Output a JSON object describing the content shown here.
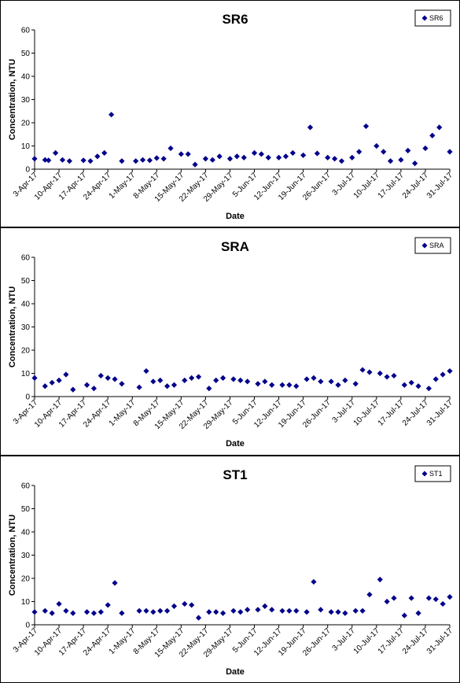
{
  "chart_data": [
    {
      "type": "scatter",
      "title": "SR6",
      "xlabel": "Date",
      "ylabel": "Concentration, NTU",
      "ylim": [
        0,
        60
      ],
      "yticks": [
        0,
        10,
        20,
        30,
        40,
        50,
        60
      ],
      "xlim": [
        "2017-04-03",
        "2017-07-31"
      ],
      "xticks": [
        "3-Apr-17",
        "10-Apr-17",
        "17-Apr-17",
        "24-Apr-17",
        "1-May-17",
        "8-May-17",
        "15-May-17",
        "22-May-17",
        "29-May-17",
        "5-Jun-17",
        "12-Jun-17",
        "19-Jun-17",
        "26-Jun-17",
        "3-Jul-17",
        "10-Jul-17",
        "17-Jul-17",
        "24-Jul-17",
        "31-Jul-17"
      ],
      "grid": false,
      "legend_position": "top-right",
      "marker": "diamond",
      "color": "#00008B",
      "series": [
        {
          "name": "SR6",
          "points": [
            [
              "2017-04-03",
              4.5
            ],
            [
              "2017-04-06",
              4.0
            ],
            [
              "2017-04-07",
              3.8
            ],
            [
              "2017-04-09",
              7.0
            ],
            [
              "2017-04-11",
              4.0
            ],
            [
              "2017-04-13",
              3.5
            ],
            [
              "2017-04-17",
              3.8
            ],
            [
              "2017-04-19",
              3.5
            ],
            [
              "2017-04-21",
              5.5
            ],
            [
              "2017-04-23",
              7.0
            ],
            [
              "2017-04-25",
              23.5
            ],
            [
              "2017-04-28",
              3.5
            ],
            [
              "2017-05-02",
              3.5
            ],
            [
              "2017-05-04",
              4.0
            ],
            [
              "2017-05-06",
              3.8
            ],
            [
              "2017-05-08",
              4.8
            ],
            [
              "2017-05-10",
              4.5
            ],
            [
              "2017-05-12",
              9.0
            ],
            [
              "2017-05-15",
              6.5
            ],
            [
              "2017-05-17",
              6.5
            ],
            [
              "2017-05-19",
              2.0
            ],
            [
              "2017-05-22",
              4.5
            ],
            [
              "2017-05-24",
              4.0
            ],
            [
              "2017-05-26",
              5.5
            ],
            [
              "2017-05-29",
              4.5
            ],
            [
              "2017-05-31",
              5.5
            ],
            [
              "2017-06-02",
              5.0
            ],
            [
              "2017-06-05",
              7.0
            ],
            [
              "2017-06-07",
              6.5
            ],
            [
              "2017-06-09",
              5.0
            ],
            [
              "2017-06-12",
              5.0
            ],
            [
              "2017-06-14",
              5.5
            ],
            [
              "2017-06-16",
              7.0
            ],
            [
              "2017-06-19",
              6.0
            ],
            [
              "2017-06-21",
              18.0
            ],
            [
              "2017-06-23",
              6.8
            ],
            [
              "2017-06-26",
              5.0
            ],
            [
              "2017-06-28",
              4.5
            ],
            [
              "2017-06-30",
              3.5
            ],
            [
              "2017-07-03",
              5.0
            ],
            [
              "2017-07-05",
              7.5
            ],
            [
              "2017-07-07",
              18.5
            ],
            [
              "2017-07-10",
              10.0
            ],
            [
              "2017-07-12",
              7.5
            ],
            [
              "2017-07-14",
              3.5
            ],
            [
              "2017-07-17",
              4.0
            ],
            [
              "2017-07-19",
              8.0
            ],
            [
              "2017-07-21",
              2.5
            ],
            [
              "2017-07-24",
              9.0
            ],
            [
              "2017-07-26",
              14.5
            ],
            [
              "2017-07-28",
              18.0
            ],
            [
              "2017-07-31",
              7.5
            ]
          ]
        }
      ]
    },
    {
      "type": "scatter",
      "title": "SRA",
      "xlabel": "Date",
      "ylabel": "Concentration, NTU",
      "ylim": [
        0,
        60
      ],
      "yticks": [
        0,
        10,
        20,
        30,
        40,
        50,
        60
      ],
      "xlim": [
        "2017-04-03",
        "2017-07-31"
      ],
      "xticks": [
        "3-Apr-17",
        "10-Apr-17",
        "17-Apr-17",
        "24-Apr-17",
        "1-May-17",
        "8-May-17",
        "15-May-17",
        "22-May-17",
        "29-May-17",
        "5-Jun-17",
        "12-Jun-17",
        "19-Jun-17",
        "26-Jun-17",
        "3-Jul-17",
        "10-Jul-17",
        "17-Jul-17",
        "24-Jul-17",
        "31-Jul-17"
      ],
      "grid": false,
      "legend_position": "top-right",
      "marker": "diamond",
      "color": "#00008B",
      "series": [
        {
          "name": "SRA",
          "points": [
            [
              "2017-04-03",
              8.0
            ],
            [
              "2017-04-06",
              4.5
            ],
            [
              "2017-04-08",
              6.0
            ],
            [
              "2017-04-10",
              7.0
            ],
            [
              "2017-04-12",
              9.5
            ],
            [
              "2017-04-14",
              3.0
            ],
            [
              "2017-04-18",
              5.0
            ],
            [
              "2017-04-20",
              3.5
            ],
            [
              "2017-04-22",
              9.0
            ],
            [
              "2017-04-24",
              8.0
            ],
            [
              "2017-04-26",
              7.5
            ],
            [
              "2017-04-28",
              5.5
            ],
            [
              "2017-05-03",
              4.0
            ],
            [
              "2017-05-05",
              11.0
            ],
            [
              "2017-05-07",
              6.5
            ],
            [
              "2017-05-09",
              7.0
            ],
            [
              "2017-05-11",
              4.5
            ],
            [
              "2017-05-13",
              5.0
            ],
            [
              "2017-05-16",
              7.0
            ],
            [
              "2017-05-18",
              8.0
            ],
            [
              "2017-05-20",
              8.5
            ],
            [
              "2017-05-23",
              3.5
            ],
            [
              "2017-05-25",
              7.0
            ],
            [
              "2017-05-27",
              8.0
            ],
            [
              "2017-05-30",
              7.5
            ],
            [
              "2017-06-01",
              7.0
            ],
            [
              "2017-06-03",
              6.5
            ],
            [
              "2017-06-06",
              5.5
            ],
            [
              "2017-06-08",
              6.5
            ],
            [
              "2017-06-10",
              5.0
            ],
            [
              "2017-06-13",
              5.0
            ],
            [
              "2017-06-15",
              5.0
            ],
            [
              "2017-06-17",
              4.5
            ],
            [
              "2017-06-20",
              7.5
            ],
            [
              "2017-06-22",
              8.0
            ],
            [
              "2017-06-24",
              6.5
            ],
            [
              "2017-06-27",
              6.5
            ],
            [
              "2017-06-29",
              5.0
            ],
            [
              "2017-07-01",
              7.0
            ],
            [
              "2017-07-04",
              5.5
            ],
            [
              "2017-07-06",
              11.5
            ],
            [
              "2017-07-08",
              10.5
            ],
            [
              "2017-07-11",
              10.0
            ],
            [
              "2017-07-13",
              8.5
            ],
            [
              "2017-07-15",
              9.0
            ],
            [
              "2017-07-18",
              5.0
            ],
            [
              "2017-07-20",
              6.0
            ],
            [
              "2017-07-22",
              4.5
            ],
            [
              "2017-07-25",
              3.5
            ],
            [
              "2017-07-27",
              7.5
            ],
            [
              "2017-07-29",
              9.5
            ],
            [
              "2017-07-31",
              11.0
            ]
          ]
        }
      ]
    },
    {
      "type": "scatter",
      "title": "ST1",
      "xlabel": "Date",
      "ylabel": "Concentration, NTU",
      "ylim": [
        0,
        60
      ],
      "yticks": [
        0,
        10,
        20,
        30,
        40,
        50,
        60
      ],
      "xlim": [
        "2017-04-03",
        "2017-07-31"
      ],
      "xticks": [
        "3-Apr-17",
        "10-Apr-17",
        "17-Apr-17",
        "24-Apr-17",
        "1-May-17",
        "8-May-17",
        "15-May-17",
        "22-May-17",
        "29-May-17",
        "5-Jun-17",
        "12-Jun-17",
        "19-Jun-17",
        "26-Jun-17",
        "3-Jul-17",
        "10-Jul-17",
        "17-Jul-17",
        "24-Jul-17",
        "31-Jul-17"
      ],
      "grid": false,
      "legend_position": "top-right",
      "marker": "diamond",
      "color": "#00008B",
      "series": [
        {
          "name": "ST1",
          "points": [
            [
              "2017-04-03",
              5.5
            ],
            [
              "2017-04-06",
              6.0
            ],
            [
              "2017-04-08",
              5.0
            ],
            [
              "2017-04-10",
              9.0
            ],
            [
              "2017-04-12",
              6.0
            ],
            [
              "2017-04-14",
              5.0
            ],
            [
              "2017-04-18",
              5.5
            ],
            [
              "2017-04-20",
              5.0
            ],
            [
              "2017-04-22",
              5.5
            ],
            [
              "2017-04-24",
              8.5
            ],
            [
              "2017-04-26",
              18.0
            ],
            [
              "2017-04-28",
              5.0
            ],
            [
              "2017-05-03",
              6.0
            ],
            [
              "2017-05-05",
              6.0
            ],
            [
              "2017-05-07",
              5.5
            ],
            [
              "2017-05-09",
              6.0
            ],
            [
              "2017-05-11",
              6.0
            ],
            [
              "2017-05-13",
              8.0
            ],
            [
              "2017-05-16",
              9.0
            ],
            [
              "2017-05-18",
              8.5
            ],
            [
              "2017-05-20",
              3.0
            ],
            [
              "2017-05-23",
              5.5
            ],
            [
              "2017-05-25",
              5.5
            ],
            [
              "2017-05-27",
              5.0
            ],
            [
              "2017-05-30",
              6.0
            ],
            [
              "2017-06-01",
              5.5
            ],
            [
              "2017-06-03",
              6.5
            ],
            [
              "2017-06-06",
              6.5
            ],
            [
              "2017-06-08",
              8.0
            ],
            [
              "2017-06-10",
              6.5
            ],
            [
              "2017-06-13",
              6.0
            ],
            [
              "2017-06-15",
              6.0
            ],
            [
              "2017-06-17",
              6.0
            ],
            [
              "2017-06-20",
              5.5
            ],
            [
              "2017-06-22",
              18.5
            ],
            [
              "2017-06-24",
              6.5
            ],
            [
              "2017-06-27",
              5.5
            ],
            [
              "2017-06-29",
              5.5
            ],
            [
              "2017-07-01",
              5.0
            ],
            [
              "2017-07-04",
              6.0
            ],
            [
              "2017-07-06",
              6.0
            ],
            [
              "2017-07-08",
              13.0
            ],
            [
              "2017-07-11",
              19.5
            ],
            [
              "2017-07-13",
              10.0
            ],
            [
              "2017-07-15",
              11.5
            ],
            [
              "2017-07-18",
              4.0
            ],
            [
              "2017-07-20",
              11.5
            ],
            [
              "2017-07-22",
              5.0
            ],
            [
              "2017-07-25",
              11.5
            ],
            [
              "2017-07-27",
              11.0
            ],
            [
              "2017-07-29",
              9.0
            ],
            [
              "2017-07-31",
              12.0
            ]
          ]
        }
      ]
    }
  ]
}
